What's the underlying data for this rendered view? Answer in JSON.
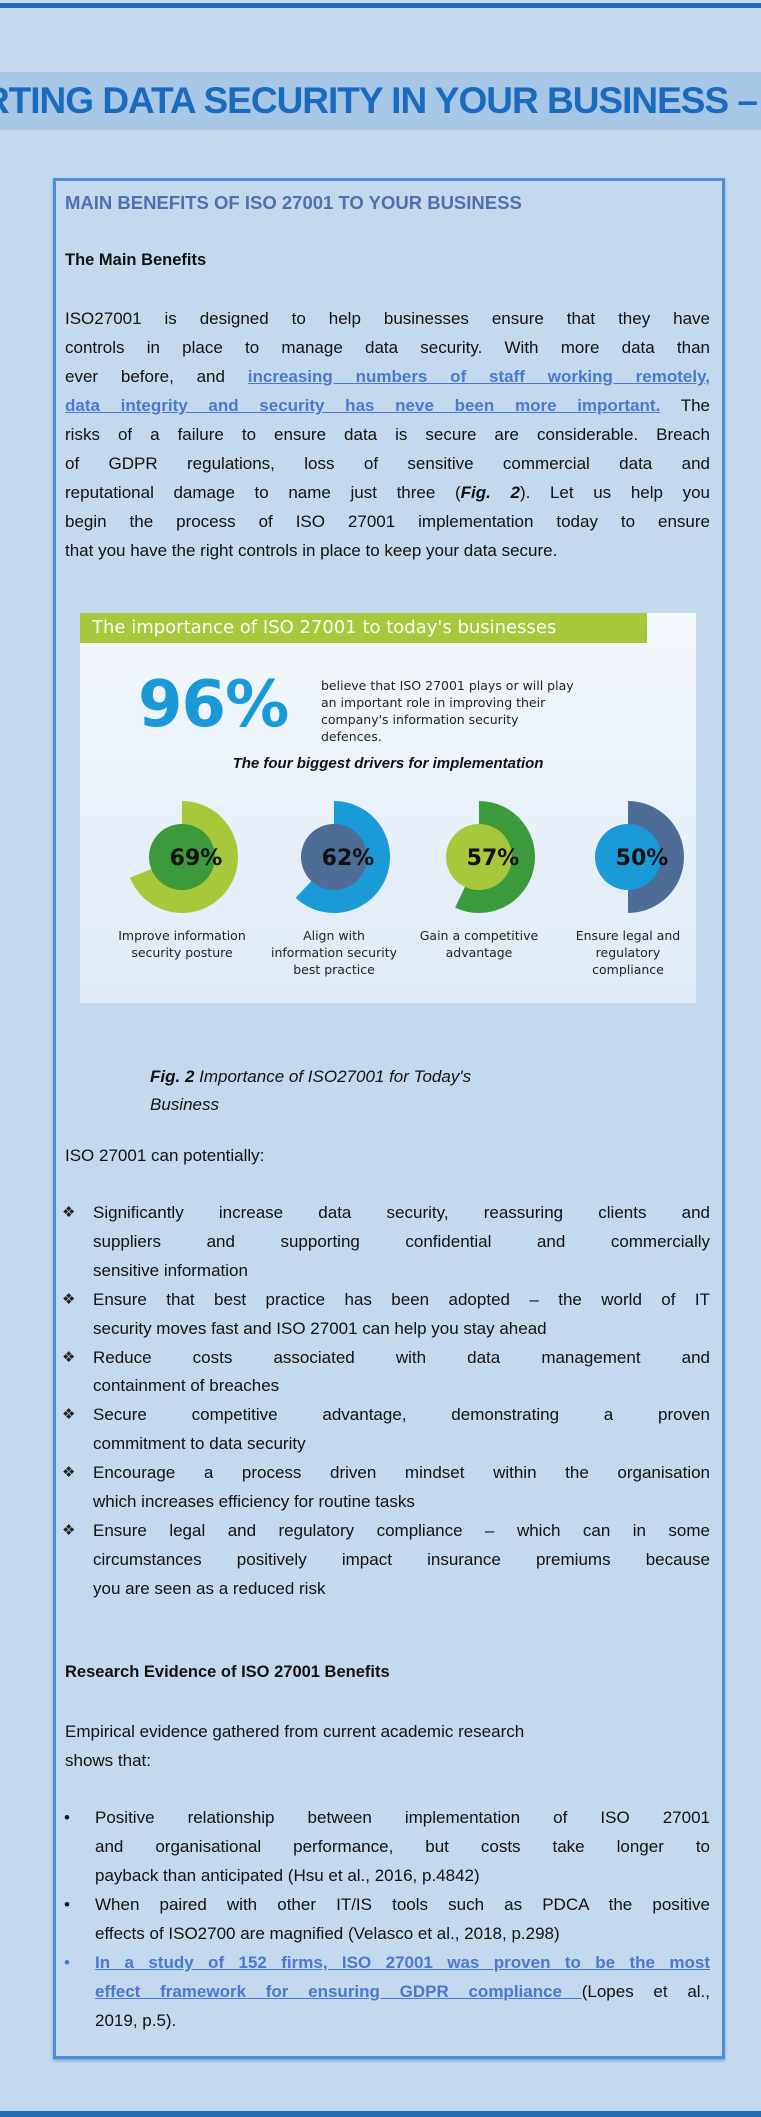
{
  "banner": {
    "title": "RTING DATA SECURITY IN YOUR BUSINESS –"
  },
  "section": {
    "heading": "MAIN BENEFITS OF ISO 27001 TO YOUR BUSINESS",
    "subheading": "The Main Benefits",
    "intro_lines": [
      "ISO27001 is designed to help businesses ensure that they have",
      "controls in place to manage data security. With more data than",
      {
        "pre": "ever before, and ",
        "link": "increasing numbers of staff working remotely,"
      },
      {
        "link": "data integrity and security has neve been more important.",
        "post": " The"
      },
      "risks of a failure to ensure data is secure are considerable. Breach",
      "of GDPR regulations, loss of sensitive commercial data and",
      {
        "pre": "reputational damage to name just three (",
        "em": "Fig. 2",
        "post": "). Let us help you"
      },
      "begin the process of ISO 27001 implementation today to ensure",
      "that you have the right controls in place to keep your data secure."
    ]
  },
  "figure": {
    "banner": "The importance of ISO 27001 to today's businesses",
    "headline_value": "96%",
    "headline_text": "believe that ISO 27001 plays or will play an important role in improving their company's information security defences.",
    "drivers_title": "The four biggest drivers for implementation",
    "drivers": [
      {
        "value": 69,
        "label_text": "69%",
        "label": "Improve information security posture",
        "outer": "#a8c83c",
        "inner": "#3b9a3c"
      },
      {
        "value": 62,
        "label_text": "62%",
        "label": "Align with information security best practice",
        "outer": "#1b9ad8",
        "inner": "#4e6d96"
      },
      {
        "value": 57,
        "label_text": "57%",
        "label": "Gain a competitive advantage",
        "outer": "#3b9a3c",
        "inner": "#a8c83c"
      },
      {
        "value": 50,
        "label_text": "50%",
        "label": "Ensure legal and regulatory compliance",
        "outer": "#4e6d96",
        "inner": "#1b9ad8"
      }
    ],
    "caption_bold": "Fig. 2",
    "caption_line1": " Importance of ISO27001 for Today's",
    "caption_line2": "Business"
  },
  "potential": {
    "lead": "ISO 27001 can potentially:",
    "items": [
      {
        "lines": [
          "Significantly increase data security, reassuring clients and",
          "suppliers and supporting confidential and commercially",
          "sensitive information"
        ]
      },
      {
        "lines": [
          "Ensure that best practice has been adopted – the world of IT",
          "security moves fast and ISO 27001 can help you stay ahead"
        ]
      },
      {
        "lines": [
          "Reduce costs associated with data management and",
          "containment of breaches"
        ]
      },
      {
        "lines": [
          "Secure competitive advantage, demonstrating a proven",
          "commitment to data security"
        ]
      },
      {
        "lines": [
          "Encourage a process driven mindset within the organisation",
          "which increases efficiency for routine tasks"
        ]
      },
      {
        "lines": [
          "Ensure legal and regulatory compliance – which can in some",
          "circumstances positively impact insurance premiums because",
          "you are seen as a reduced risk"
        ]
      }
    ]
  },
  "research": {
    "heading": "Research Evidence of ISO 27001 Benefits",
    "lead_lines": [
      "Empirical evidence gathered from current academic research",
      "shows that:"
    ],
    "items": [
      {
        "lines": [
          "Positive relationship between implementation of ISO 27001",
          "and organisational performance, but costs take longer to",
          "payback than anticipated (Hsu et al., 2016, p.4842)"
        ]
      },
      {
        "lines": [
          "When paired with other IT/IS tools such as PDCA the positive",
          "effects of ISO2700 are magnified (Velasco et al., 2018, p.298)"
        ]
      },
      {
        "link1": "In a study of 152 firms, ISO 27001 was proven to be the most",
        "link2": "effect framework for ensuring GDPR compliance ",
        "post2": "(Lopes et al.,",
        "line3": "2019, p.5)."
      }
    ]
  },
  "colors": {
    "background": "#c5d9ee",
    "accent": "#1a6bbd",
    "link": "#4a78cf",
    "box_border": "#4d8fd6"
  }
}
